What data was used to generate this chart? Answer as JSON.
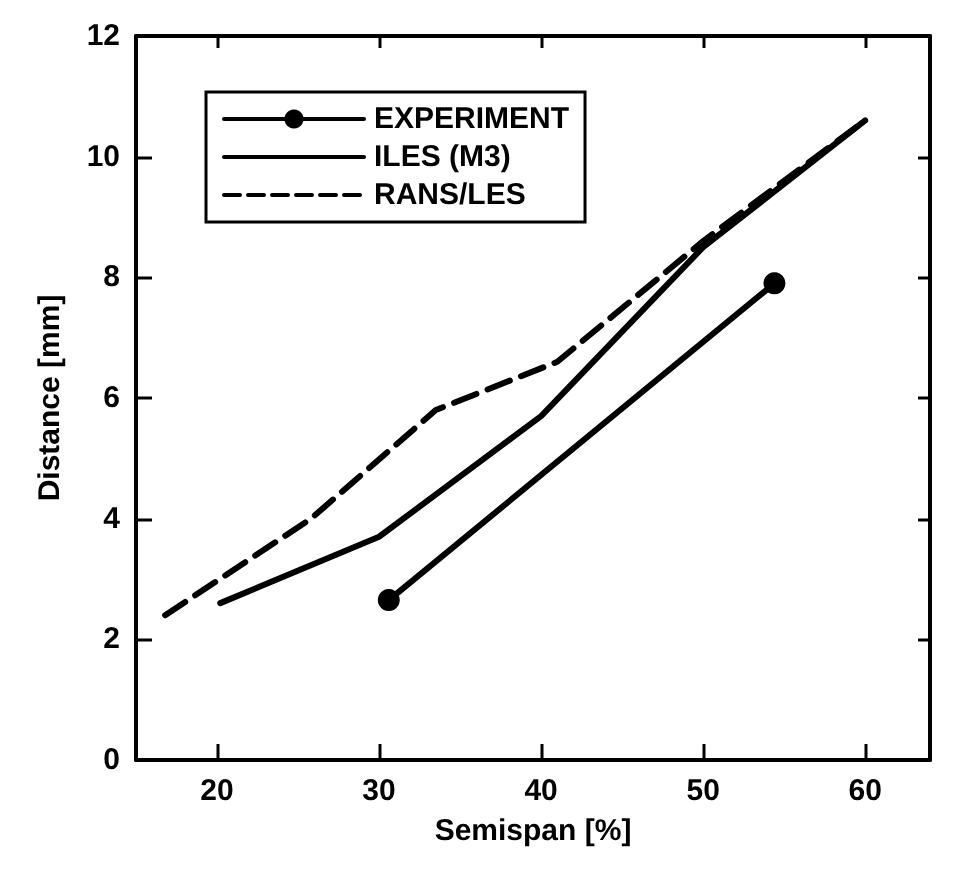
{
  "chart_data": {
    "type": "line",
    "xlabel": "Semispan [%]",
    "ylabel": "Distance [mm]",
    "xlim": [
      15,
      64
    ],
    "ylim": [
      0,
      12
    ],
    "xticks": [
      20,
      30,
      40,
      50,
      60
    ],
    "yticks": [
      0,
      2,
      4,
      6,
      8,
      10,
      12
    ],
    "grid": false,
    "legend": "top left",
    "series": [
      {
        "name": "EXPERIMENT",
        "color": "#000000",
        "marker": "circle",
        "line_style": "solid",
        "x": [
          30.6,
          54.4
        ],
        "values": [
          2.65,
          7.9
        ]
      },
      {
        "name": "ILES (M3)",
        "color": "#000000",
        "marker": "none",
        "line_style": "solid",
        "x": [
          20.2,
          30,
          40,
          50,
          60
        ],
        "values": [
          2.6,
          3.7,
          5.7,
          8.5,
          10.6
        ]
      },
      {
        "name": "RANS/LES",
        "color": "#000000",
        "marker": "none",
        "line_style": "dashed",
        "x": [
          16.8,
          25.8,
          33.5,
          41,
          50,
          60
        ],
        "values": [
          2.4,
          4.0,
          5.8,
          6.6,
          8.6,
          10.6
        ]
      }
    ]
  }
}
